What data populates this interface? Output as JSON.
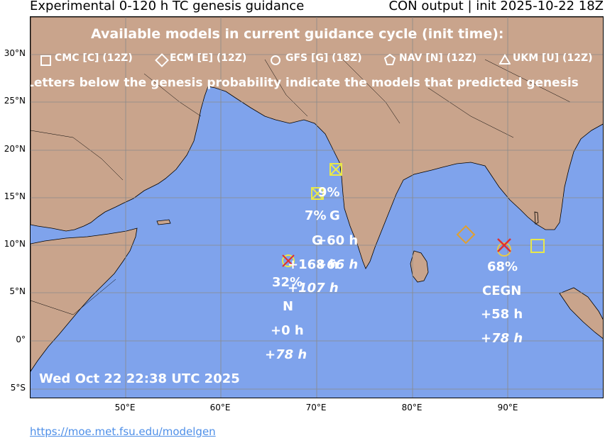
{
  "title_left": "Experimental 0-120 h TC genesis guidance",
  "title_right": "CON output | init 2025-10-22 18Z",
  "legend": {
    "heading": "Available models in current guidance cycle (init time):",
    "models": [
      {
        "symbol": "square",
        "label": "CMC [C] (12Z)"
      },
      {
        "symbol": "diamond",
        "label": "ECM [E] (12Z)"
      },
      {
        "symbol": "circle",
        "label": "GFS [G] (18Z)"
      },
      {
        "symbol": "pentagon",
        "label": "NAV [N] (12Z)"
      },
      {
        "symbol": "triangle",
        "label": "UKM [U] (12Z)"
      }
    ],
    "note": "Letters below the genesis probability indicate the models that predicted genesis"
  },
  "lat_labels": [
    "30°N",
    "25°N",
    "20°N",
    "15°N",
    "10°N",
    "5°N",
    "0°",
    "5°S"
  ],
  "lon_labels": [
    "50°E",
    "60°E",
    "70°E",
    "80°E",
    "90°E"
  ],
  "timestamp": "Wed Oct 22 22:38 UTC 2025",
  "footer_url": "https://moe.met.fsu.edu/modelgen",
  "colors": {
    "ocean": "#7fa3ec",
    "land": "#c9a48c",
    "grid": "#8a8a8a",
    "white": "#ffffff"
  },
  "systems": [
    {
      "id": "arabian-sea-west",
      "prob": "32%",
      "models": "N",
      "lead1": "+0 h",
      "lead2": "+78 h"
    },
    {
      "id": "arabian-sea-east",
      "prob": "7%",
      "models": "G",
      "lead1": "+60 h",
      "lead2": "+66 h"
    },
    {
      "id": "bay-of-bengal",
      "prob": "68%",
      "models": "CEGN",
      "lead1": "+58 h",
      "lead2": "+78 h"
    }
  ],
  "overlap_text": {
    "a": "9%",
    "b": "G",
    "c": "+168 h",
    "d": "+107 h"
  }
}
